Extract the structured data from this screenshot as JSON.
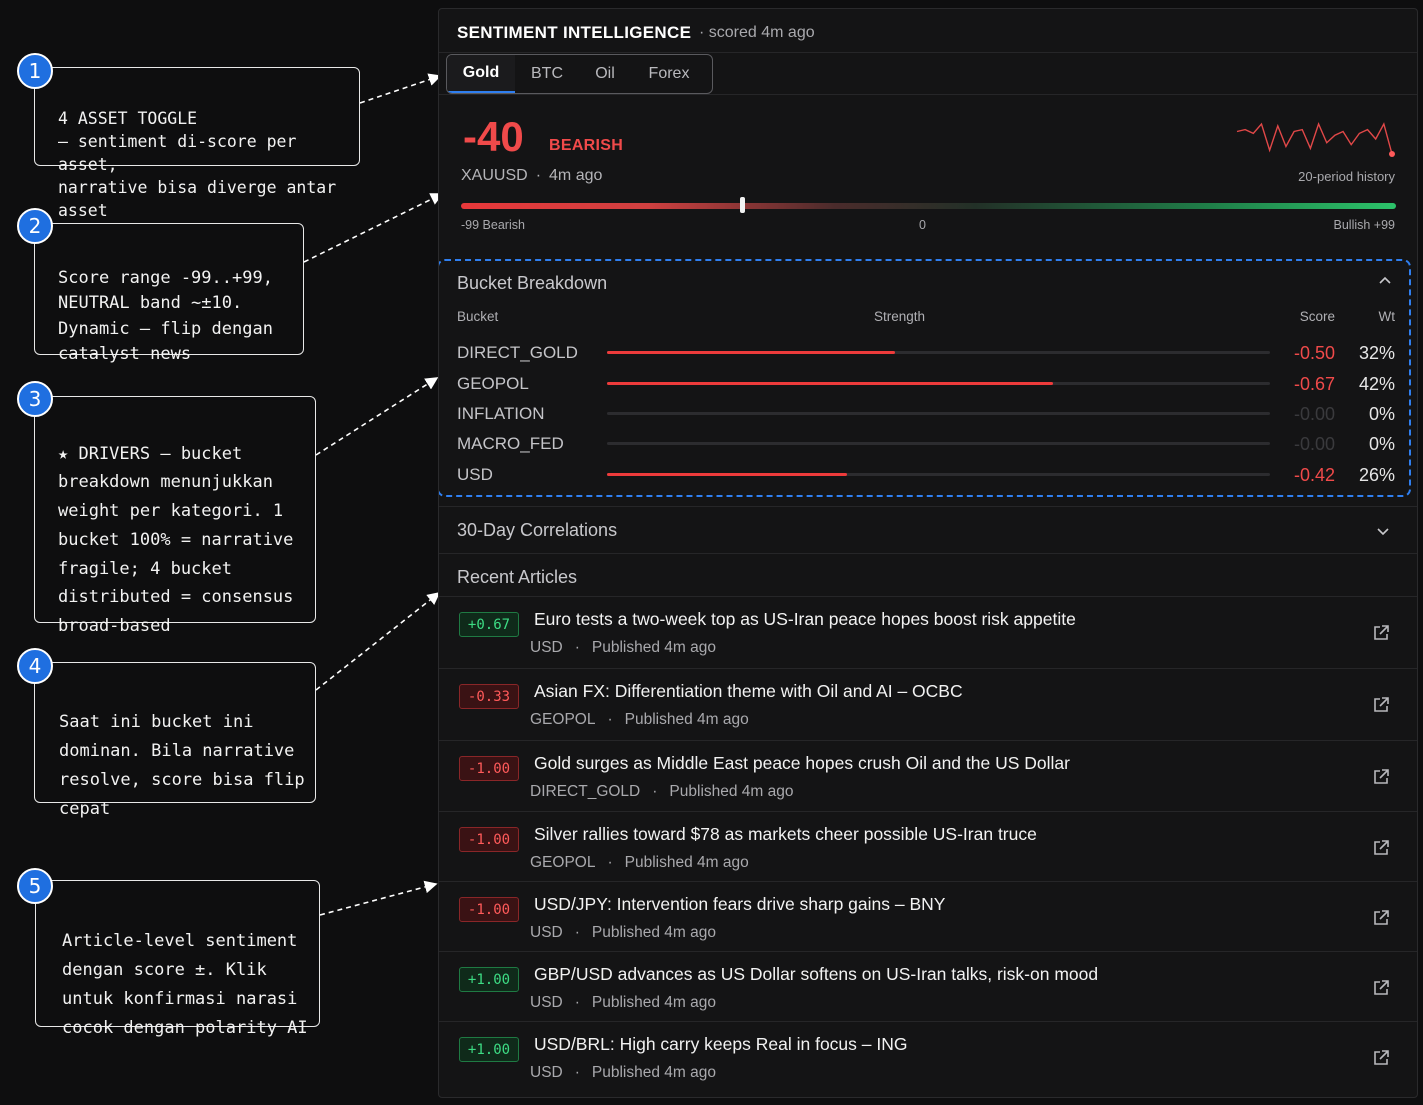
{
  "annotations": [
    {
      "num": "1",
      "text": "4 ASSET TOGGLE\n— sentiment di-score per asset,\nnarrative bisa diverge antar asset"
    },
    {
      "num": "2",
      "text": "Score range -99..+99,\nNEUTRAL band ~±10.\nDynamic — flip dengan\ncatalyst news"
    },
    {
      "num": "3",
      "text": "★ DRIVERS — bucket\nbreakdown menunjukkan\nweight per kategori. 1\nbucket 100% = narrative\nfragile; 4 bucket\ndistributed = consensus\nbroad-based"
    },
    {
      "num": "4",
      "text": "Saat ini bucket ini\ndominan. Bila narrative\nresolve, score bisa flip\ncepat"
    },
    {
      "num": "5",
      "text": "Article-level sentiment\ndengan score ±. Klik\nuntuk konfirmasi narasi\ncocok dengan polarity AI"
    }
  ],
  "panel": {
    "title": "SENTIMENT INTELLIGENCE",
    "scored": "· scored 4m ago",
    "tabs": [
      "Gold",
      "BTC",
      "Oil",
      "Forex"
    ],
    "active_tab": "Gold"
  },
  "score": {
    "value": "-40",
    "label": "BEARISH",
    "symbol": "XAUUSD",
    "sep": "·",
    "age": "4m ago",
    "history_label": "20-period history",
    "history": [
      2,
      3,
      1,
      6,
      -8,
      5,
      -6,
      2,
      3,
      -7,
      6,
      -4,
      0,
      2,
      -5,
      1,
      3,
      -2,
      6,
      -10
    ],
    "gauge_min_label": "-99 Bearish",
    "gauge_mid_label": "0",
    "gauge_max_label": "Bullish +99",
    "gauge_value": -40,
    "colors": {
      "bearish": "#f04a4a",
      "bullish": "#3ddc84",
      "accent": "#2f7ff0"
    }
  },
  "bucket": {
    "title": "Bucket Breakdown",
    "headers": {
      "bucket": "Bucket",
      "strength": "Strength",
      "score": "Score",
      "wt": "Wt"
    },
    "rows": [
      {
        "name": "DIRECT_GOLD",
        "score": "-0.50",
        "wt": "32%",
        "strength": 0.435
      },
      {
        "name": "GEOPOL",
        "score": "-0.67",
        "wt": "42%",
        "strength": 0.672
      },
      {
        "name": "INFLATION",
        "score": "-0.00",
        "wt": "0%",
        "strength": 0
      },
      {
        "name": "MACRO_FED",
        "score": "-0.00",
        "wt": "0%",
        "strength": 0
      },
      {
        "name": "USD",
        "score": "-0.42",
        "wt": "26%",
        "strength": 0.362
      }
    ]
  },
  "correlations": {
    "title": "30-Day Correlations"
  },
  "articles": {
    "title": "Recent Articles",
    "items": [
      {
        "score": "+0.67",
        "pos": true,
        "title": "Euro tests a two-week top as US-Iran peace hopes boost risk appetite",
        "bucket": "USD",
        "dot": "·",
        "published": "Published 4m ago"
      },
      {
        "score": "-0.33",
        "pos": false,
        "title": "Asian FX: Differentiation theme with Oil and AI – OCBC",
        "bucket": "GEOPOL",
        "dot": "·",
        "published": "Published 4m ago"
      },
      {
        "score": "-1.00",
        "pos": false,
        "title": "Gold surges as Middle East peace hopes crush Oil and the US Dollar",
        "bucket": "DIRECT_GOLD",
        "dot": "·",
        "published": "Published 4m ago"
      },
      {
        "score": "-1.00",
        "pos": false,
        "title": "Silver rallies toward $78 as markets cheer possible US-Iran truce",
        "bucket": "GEOPOL",
        "dot": "·",
        "published": "Published 4m ago"
      },
      {
        "score": "-1.00",
        "pos": false,
        "title": "USD/JPY: Intervention fears drive sharp gains – BNY",
        "bucket": "USD",
        "dot": "·",
        "published": "Published 4m ago"
      },
      {
        "score": "+1.00",
        "pos": true,
        "title": "GBP/USD advances as US Dollar softens on US-Iran talks, risk-on mood",
        "bucket": "USD",
        "dot": "·",
        "published": "Published 4m ago"
      },
      {
        "score": "+1.00",
        "pos": true,
        "title": "USD/BRL: High carry keeps Real in focus – ING",
        "bucket": "USD",
        "dot": "·",
        "published": "Published 4m ago"
      }
    ]
  }
}
